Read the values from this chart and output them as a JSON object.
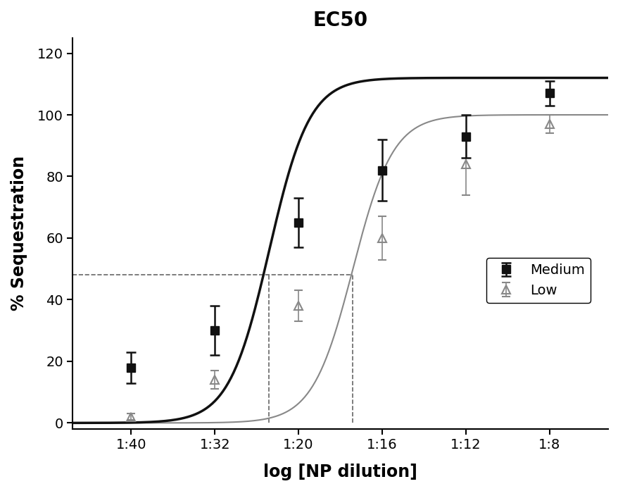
{
  "title": "EC50",
  "xlabel": "log [NP dilution]",
  "ylabel": "% Sequestration",
  "xlim": [
    0.3,
    6.7
  ],
  "ylim": [
    -2,
    125
  ],
  "yticks": [
    0,
    20,
    40,
    60,
    80,
    100,
    120
  ],
  "xtick_labels": [
    "1:40",
    "1:32",
    "1:20",
    "1:16",
    "1:12",
    "1:8"
  ],
  "xtick_positions": [
    1,
    2,
    3,
    4,
    5,
    6
  ],
  "medium_x": [
    1,
    2,
    3,
    4,
    5,
    6
  ],
  "medium_y": [
    18,
    30,
    65,
    82,
    93,
    107
  ],
  "medium_yerr": [
    5,
    8,
    8,
    10,
    7,
    4
  ],
  "low_x": [
    1,
    2,
    3,
    4,
    5,
    6
  ],
  "low_y": [
    2,
    14,
    38,
    60,
    84,
    97
  ],
  "low_yerr": [
    1,
    3,
    5,
    7,
    10,
    3
  ],
  "medium_color": "#111111",
  "low_color": "#888888",
  "medium_marker": "s",
  "low_marker": "^",
  "medium_markersize": 9,
  "low_markersize": 8,
  "medium_linewidth": 2.5,
  "low_linewidth": 1.5,
  "ec50_medium_x": 2.65,
  "ec50_low_x": 3.65,
  "ec50_y": 48,
  "dashed_color": "#666666",
  "title_fontsize": 20,
  "axis_label_fontsize": 17,
  "tick_fontsize": 14,
  "legend_fontsize": 14
}
